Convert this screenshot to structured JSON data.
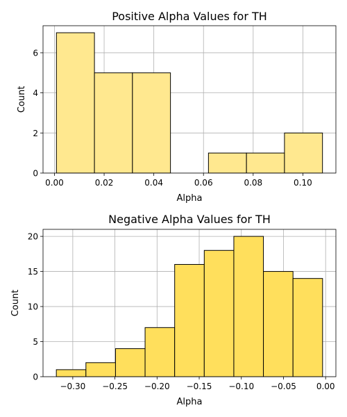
{
  "chart_data": [
    {
      "type": "bar",
      "subtype": "histogram",
      "title": "Positive Alpha Values for TH",
      "xlabel": "Alpha",
      "ylabel": "Count",
      "color": "#ffe88f",
      "bins": [
        {
          "x0": 0.0008,
          "x1": 0.0161,
          "count": 7
        },
        {
          "x0": 0.0161,
          "x1": 0.0314,
          "count": 5
        },
        {
          "x0": 0.0314,
          "x1": 0.0467,
          "count": 5
        },
        {
          "x0": 0.0467,
          "x1": 0.062,
          "count": 0
        },
        {
          "x0": 0.062,
          "x1": 0.0773,
          "count": 1
        },
        {
          "x0": 0.0773,
          "x1": 0.0926,
          "count": 1
        },
        {
          "x0": 0.0926,
          "x1": 0.1079,
          "count": 2
        }
      ],
      "xlim": [
        -0.0046,
        0.1133
      ],
      "ylim": [
        0,
        7.35
      ],
      "xticks": [
        0.0,
        0.02,
        0.04,
        0.06,
        0.08,
        0.1
      ],
      "xtick_labels": [
        "0.00",
        "0.02",
        "0.04",
        "0.06",
        "0.08",
        "0.10"
      ],
      "yticks": [
        0,
        2,
        4,
        6
      ],
      "ytick_labels": [
        "0",
        "2",
        "4",
        "6"
      ],
      "grid": true
    },
    {
      "type": "bar",
      "subtype": "histogram",
      "title": "Negative Alpha Values for TH",
      "xlabel": "Alpha",
      "ylabel": "Count",
      "color": "#ffdf5c",
      "bins": [
        {
          "x0": -0.3195,
          "x1": -0.2844,
          "count": 1
        },
        {
          "x0": -0.2844,
          "x1": -0.2493,
          "count": 2
        },
        {
          "x0": -0.2493,
          "x1": -0.2142,
          "count": 4
        },
        {
          "x0": -0.2142,
          "x1": -0.1791,
          "count": 7
        },
        {
          "x0": -0.1791,
          "x1": -0.144,
          "count": 16
        },
        {
          "x0": -0.144,
          "x1": -0.1089,
          "count": 18
        },
        {
          "x0": -0.1089,
          "x1": -0.0738,
          "count": 20
        },
        {
          "x0": -0.0738,
          "x1": -0.0387,
          "count": 15
        },
        {
          "x0": -0.0387,
          "x1": -0.0036,
          "count": 14
        }
      ],
      "xlim": [
        -0.3353,
        0.0122
      ],
      "ylim": [
        0,
        21
      ],
      "xticks": [
        -0.3,
        -0.25,
        -0.2,
        -0.15,
        -0.1,
        -0.05,
        0.0
      ],
      "xtick_labels": [
        "−0.30",
        "−0.25",
        "−0.20",
        "−0.15",
        "−0.10",
        "−0.05",
        "0.00"
      ],
      "yticks": [
        0,
        5,
        10,
        15,
        20
      ],
      "ytick_labels": [
        "0",
        "5",
        "10",
        "15",
        "20"
      ],
      "grid": true
    }
  ]
}
